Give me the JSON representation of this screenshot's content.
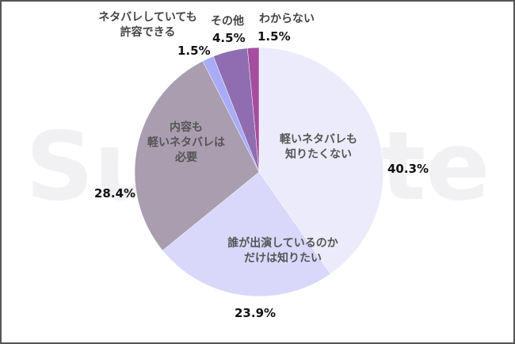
{
  "chart_data": {
    "type": "pie",
    "start": "top",
    "direction": "clockwise",
    "slices": [
      {
        "label": "軽いネタバレも知りたくない",
        "lines": [
          "軽いネタバレも",
          "知りたくない"
        ],
        "value": 40.3,
        "value_label": "40.3%",
        "color": "#ecebfc"
      },
      {
        "label": "誰が出演しているのかだけは知りたい",
        "lines": [
          "誰が出演しているのか",
          "だけは知りたい"
        ],
        "value": 23.9,
        "value_label": "23.9%",
        "color": "#d9d8fb"
      },
      {
        "label": "内容も軽いネタバレは必要",
        "lines": [
          "内容も",
          "軽いネタバレは",
          "必要"
        ],
        "value": 28.4,
        "value_label": "28.4%",
        "color": "#a99db0"
      },
      {
        "label": "ネタバレしていても許容できる",
        "lines": [
          "ネタバレしていても",
          "許容できる"
        ],
        "value": 1.5,
        "value_label": "1.5%",
        "color": "#a9abf7"
      },
      {
        "label": "その他",
        "lines": [
          "その他"
        ],
        "value": 4.5,
        "value_label": "4.5%",
        "color": "#8f6db0"
      },
      {
        "label": "わからない",
        "lines": [
          "わからない"
        ],
        "value": 1.5,
        "value_label": "1.5%",
        "color": "#a64d9f"
      }
    ]
  },
  "watermark": [
    "Su",
    "te"
  ]
}
